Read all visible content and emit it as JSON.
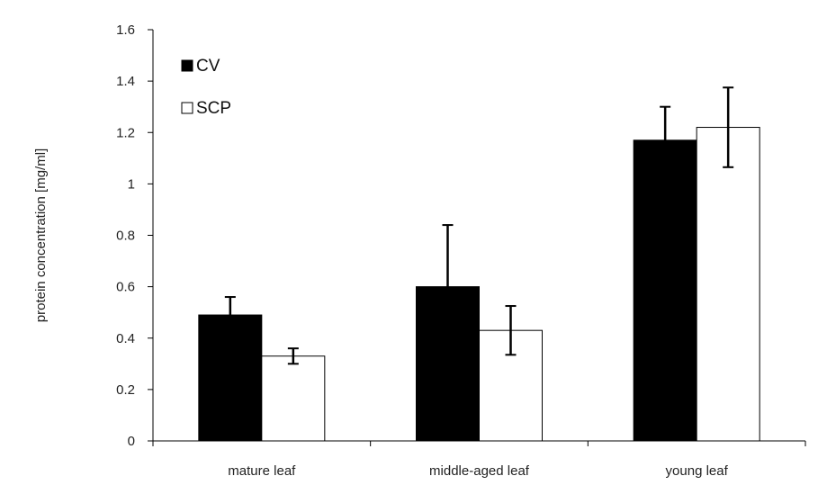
{
  "chart_data": {
    "type": "bar",
    "title": "",
    "xlabel": "",
    "ylabel": "protein concentration [mg/ml]",
    "categories": [
      "mature leaf",
      "middle-aged leaf",
      "young leaf"
    ],
    "ylim": [
      0,
      1.6
    ],
    "yticks": [
      0,
      0.2,
      0.4,
      0.6,
      0.8,
      1,
      1.2,
      1.4,
      1.6
    ],
    "ytick_labels": [
      "0",
      "0.2",
      "0.4",
      "0.6",
      "0.8",
      "1",
      "1.2",
      "1.4",
      "1.6"
    ],
    "grid": false,
    "legend": {
      "placement": "top-left"
    },
    "series": [
      {
        "name": "CV",
        "color": "#000000",
        "values": [
          0.49,
          0.6,
          1.17
        ],
        "errors": [
          0.07,
          0.24,
          0.13
        ]
      },
      {
        "name": "SCP",
        "color": "#ffffff",
        "values": [
          0.33,
          0.43,
          1.22
        ],
        "errors": [
          0.03,
          0.095,
          0.155
        ]
      }
    ]
  }
}
